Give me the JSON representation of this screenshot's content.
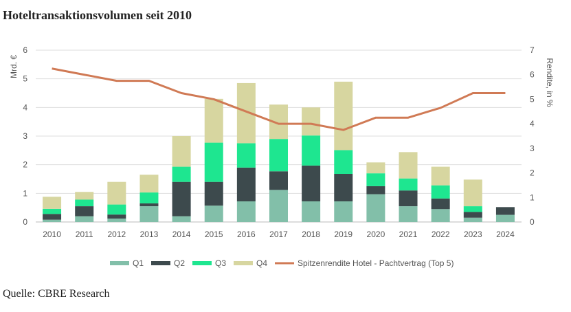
{
  "title": "Hoteltransaktionsvolumen seit 2010",
  "source": "Quelle: CBRE Research",
  "chart_data": {
    "type": "bar",
    "stacked": true,
    "categories": [
      "2010",
      "2011",
      "2012",
      "2013",
      "2014",
      "2015",
      "2016",
      "2017",
      "2018",
      "2019",
      "2020",
      "2021",
      "2022",
      "2023",
      "2024"
    ],
    "series": [
      {
        "name": "Q1",
        "color": "#82bfa9",
        "values": [
          0.08,
          0.2,
          0.12,
          0.55,
          0.2,
          0.57,
          0.72,
          1.12,
          0.72,
          0.72,
          0.97,
          0.55,
          0.45,
          0.15,
          0.25
        ]
      },
      {
        "name": "Q2",
        "color": "#3d4a4d",
        "values": [
          0.2,
          0.35,
          0.14,
          0.1,
          1.2,
          0.83,
          1.18,
          0.65,
          1.25,
          0.96,
          0.28,
          0.55,
          0.37,
          0.2,
          0.27
        ]
      },
      {
        "name": "Q3",
        "color": "#1ee690",
        "values": [
          0.18,
          0.23,
          0.35,
          0.38,
          0.53,
          1.37,
          0.85,
          1.13,
          1.05,
          0.83,
          0.45,
          0.42,
          0.46,
          0.2,
          0
        ]
      },
      {
        "name": "Q4",
        "color": "#d7d6a0",
        "values": [
          0.42,
          0.27,
          0.79,
          0.62,
          1.07,
          1.53,
          2.1,
          1.2,
          0.98,
          2.39,
          0.38,
          0.92,
          0.65,
          0.93,
          0
        ]
      }
    ],
    "line_series": {
      "name": "Spitzenrendite Hotel - Pachtvertrag (Top 5)",
      "color": "#d07a55",
      "values": [
        6.25,
        6.0,
        5.75,
        5.75,
        5.25,
        5.0,
        4.5,
        4.0,
        4.0,
        3.75,
        4.25,
        4.25,
        4.65,
        5.25,
        5.25
      ]
    },
    "y_left": {
      "label": "Mrd. €",
      "min": 0,
      "max": 6,
      "ticks": [
        "0",
        "1",
        "2",
        "3",
        "4",
        "5",
        "6"
      ]
    },
    "y_right": {
      "label": "Rendite, in %",
      "min": 0,
      "max": 7,
      "ticks": [
        "0",
        "1",
        "2",
        "3",
        "4",
        "5",
        "6",
        "7"
      ]
    },
    "grid": true,
    "legend_position": "bottom"
  }
}
